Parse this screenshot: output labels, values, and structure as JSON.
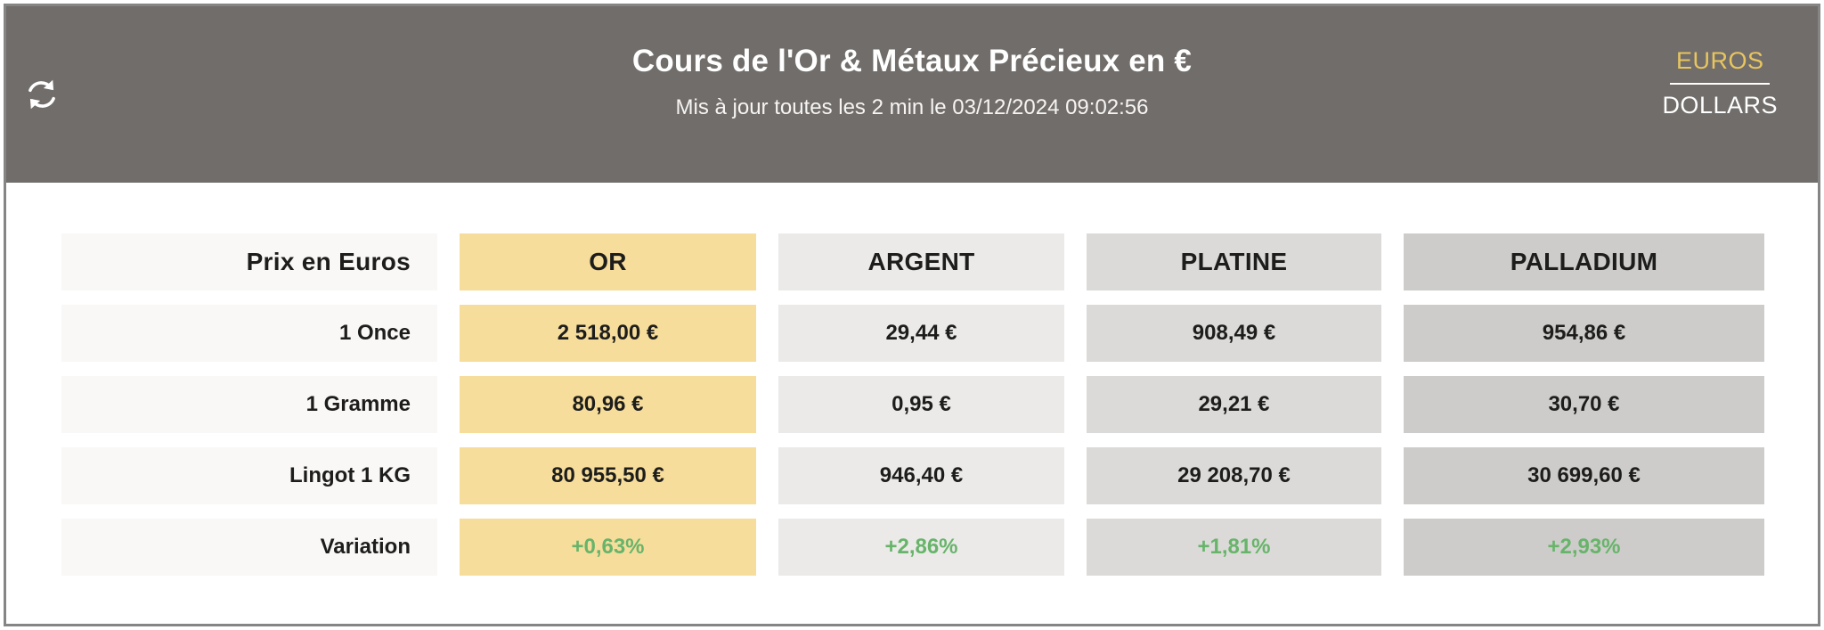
{
  "header": {
    "title": "Cours de l'Or & Métaux Précieux en €",
    "subtitle": "Mis à jour toutes les 2 min le 03/12/2024 09:02:56",
    "currency": {
      "euros_label": "EUROS",
      "dollars_label": "DOLLARS",
      "selected": "EUROS"
    }
  },
  "table": {
    "row_header_label": "Prix en Euros",
    "columns": [
      {
        "key": "or",
        "label": "OR",
        "bg": "#F7DD9B"
      },
      {
        "key": "argent",
        "label": "ARGENT",
        "bg": "#EBEAE9"
      },
      {
        "key": "platine",
        "label": "PLATINE",
        "bg": "#DBDAD8"
      },
      {
        "key": "palladium",
        "label": "PALLADIUM",
        "bg": "#CDCCCA"
      }
    ],
    "rows": [
      {
        "label": "1 Once",
        "type": "price",
        "values": [
          "2 518,00 €",
          "29,44 €",
          "908,49 €",
          "954,86 €"
        ]
      },
      {
        "label": "1 Gramme",
        "type": "price",
        "values": [
          "80,96 €",
          "0,95 €",
          "29,21 €",
          "30,70 €"
        ]
      },
      {
        "label": "Lingot 1 KG",
        "type": "price",
        "values": [
          "80 955,50 €",
          "946,40 €",
          "29 208,70 €",
          "30 699,60 €"
        ]
      },
      {
        "label": "Variation",
        "type": "variation",
        "values": [
          "+0,63%",
          "+2,86%",
          "+1,81%",
          "+2,93%"
        ]
      }
    ]
  },
  "colors": {
    "header_bg": "#716D6A",
    "accent_gold_text": "#E8C55F",
    "gold_cell_bg": "#F7DD9B",
    "label_cell_bg": "#F9F8F6",
    "variation_green": "#67B46A",
    "widget_border": "#858585"
  }
}
